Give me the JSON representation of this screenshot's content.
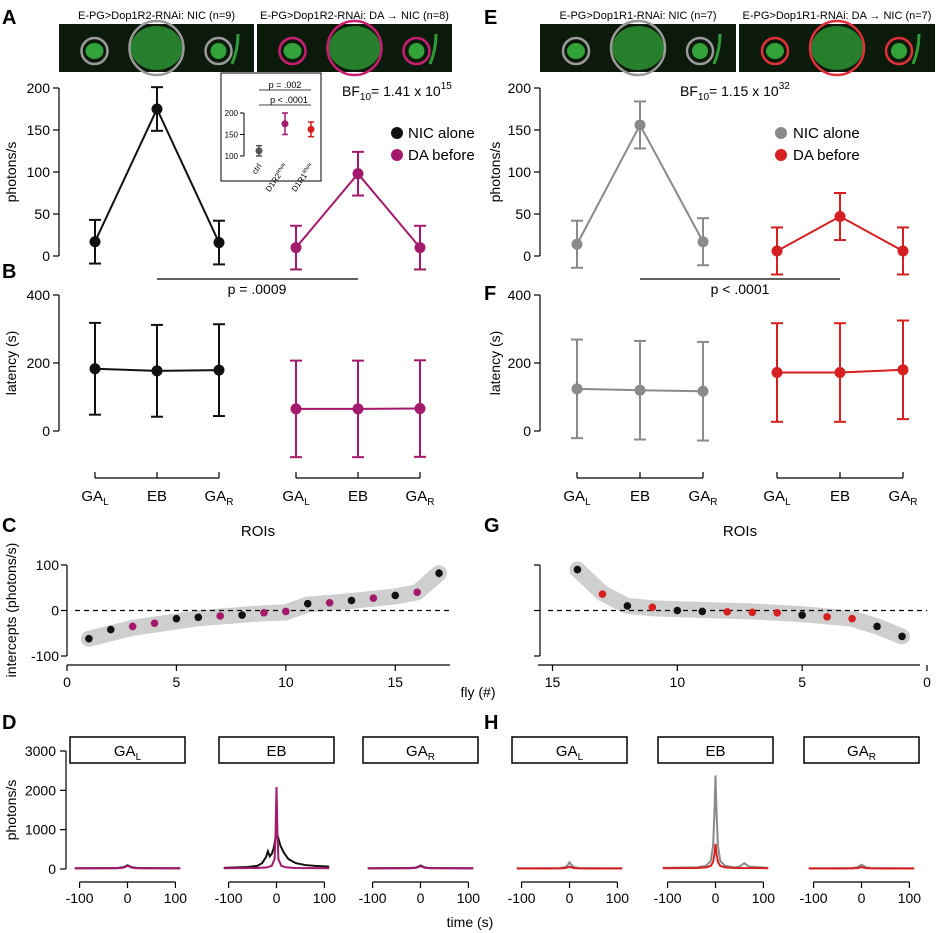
{
  "figure": {
    "colors": {
      "black": "#111111",
      "magenta": "#a3196b",
      "gray": "#8a8a8a",
      "red": "#d62020",
      "band": "#cfcfcf",
      "microscopy_bg": "#0b1a0b",
      "fluor": "#3fd24a"
    },
    "left": {
      "panel_letters": [
        "A",
        "B",
        "C",
        "D"
      ],
      "image_titles": [
        "E-PG>Dop1R2-RNAi: NIC (n=9)",
        "E-PG>Dop1R2-RNAi: DA → NIC (n=8)"
      ],
      "ring_colors": [
        "#9a9a9a",
        "#c81f73"
      ],
      "bf_text": "BF",
      "bf_sub": "10",
      "bf_value": "= 1.41 x 10",
      "bf_exp": "15",
      "p_between": "p = .0009"
    },
    "right": {
      "panel_letters": [
        "E",
        "F",
        "G",
        "H"
      ],
      "image_titles": [
        "E-PG>Dop1R1-RNAi: NIC (n=7)",
        "E-PG>Dop1R1-RNAi: DA → NIC (n=7)"
      ],
      "ring_colors": [
        "#9a9a9a",
        "#e0303a"
      ],
      "bf_text": "BF",
      "bf_sub": "10",
      "bf_value": "= 1.15 x 10",
      "bf_exp": "32",
      "p_between": "p < .0001"
    },
    "roi_axis_title": "ROIs",
    "fly_axis_title": "fly (#)",
    "time_axis_title": "time (s)",
    "trace_box_labels": [
      {
        "main": "GA",
        "sub": "L"
      },
      {
        "main": "EB",
        "sub": ""
      },
      {
        "main": "GA",
        "sub": "R"
      }
    ]
  },
  "chart_data": [
    {
      "panel": "A",
      "type": "line",
      "ylabel": "photons/s",
      "ylim": [
        0,
        200
      ],
      "yticks": [
        0,
        50,
        100,
        150,
        200
      ],
      "categories": [
        "GA_L",
        "EB",
        "GA_R"
      ],
      "series": [
        {
          "name": "NIC alone",
          "color": "#111111",
          "group": 0,
          "values": [
            17,
            175,
            16
          ],
          "err": [
            26,
            26,
            26
          ]
        },
        {
          "name": "DA before",
          "color": "#a3196b",
          "group": 1,
          "values": [
            10,
            98,
            10
          ],
          "err": [
            26,
            26,
            26
          ]
        }
      ]
    },
    {
      "panel": "A-inset",
      "type": "scatter",
      "categories": [
        "ctrl",
        "D1R2RNAi",
        "D1R1RNAi"
      ],
      "cat_labels": [
        {
          "main": "ctrl",
          "sup": ""
        },
        {
          "main": "D1R2",
          "sup": "RNAi"
        },
        {
          "main": "D1R1",
          "sup": "RNAi"
        }
      ],
      "ylim": [
        100,
        200
      ],
      "yticks": [
        100,
        150,
        200
      ],
      "values": [
        112,
        175,
        162
      ],
      "err": [
        12,
        25,
        17
      ],
      "colors": [
        "#555555",
        "#a3196b",
        "#d62020"
      ],
      "annotations": [
        "p = .002",
        "p < .0001"
      ]
    },
    {
      "panel": "B",
      "type": "line",
      "ylabel": "latency (s)",
      "ylim": [
        0,
        400
      ],
      "yticks": [
        0,
        200,
        400
      ],
      "categories": [
        "GA_L",
        "EB",
        "GA_R"
      ],
      "cat_labels": [
        {
          "main": "GA",
          "sub": "L"
        },
        {
          "main": "EB",
          "sub": ""
        },
        {
          "main": "GA",
          "sub": "R"
        }
      ],
      "series": [
        {
          "name": "NIC alone",
          "color": "#111111",
          "group": 0,
          "values": [
            183,
            177,
            179
          ],
          "err": [
            135,
            135,
            135
          ]
        },
        {
          "name": "DA before",
          "color": "#a3196b",
          "group": 1,
          "values": [
            65,
            65,
            66
          ],
          "err": [
            142,
            142,
            142
          ]
        }
      ]
    },
    {
      "panel": "C",
      "type": "scatter",
      "xlabel": "fly (#)",
      "ylabel": "intercepts (photons/s)",
      "xlim": [
        0,
        17.5
      ],
      "ylim": [
        -100,
        100
      ],
      "xticks": [
        0,
        5,
        10,
        15
      ],
      "yticks": [
        -100,
        0,
        100
      ],
      "x": [
        1,
        2,
        3,
        4,
        5,
        6,
        7,
        8,
        9,
        10,
        11,
        12,
        13,
        14,
        15,
        16,
        17
      ],
      "y": [
        -62,
        -42,
        -35,
        -28,
        -18,
        -15,
        -12,
        -10,
        -5,
        -2,
        15,
        17,
        22,
        27,
        33,
        40,
        82
      ],
      "err": [
        8,
        7,
        8,
        7,
        7,
        7,
        7,
        7,
        7,
        7,
        8,
        6,
        8,
        7,
        7,
        7,
        9
      ],
      "group": [
        0,
        0,
        1,
        1,
        0,
        0,
        1,
        0,
        1,
        1,
        0,
        1,
        0,
        1,
        0,
        1,
        0
      ],
      "series": [
        {
          "name": "NIC alone",
          "color": "#111111"
        },
        {
          "name": "DA before",
          "color": "#a3196b"
        }
      ],
      "band": [
        [
          1,
          -62
        ],
        [
          3,
          -38
        ],
        [
          6,
          -17
        ],
        [
          9,
          -6
        ],
        [
          10,
          -4
        ],
        [
          11,
          13
        ],
        [
          13,
          21
        ],
        [
          15,
          31
        ],
        [
          16,
          40
        ],
        [
          17,
          82
        ]
      ]
    },
    {
      "panel": "D",
      "type": "line",
      "xlabel": "time (s)",
      "ylabel": "photons/s",
      "xlim": [
        -120,
        120
      ],
      "ylim": [
        0,
        3000
      ],
      "xticks": [
        -100,
        0,
        100
      ],
      "yticks": [
        0,
        1000,
        2000,
        3000
      ],
      "subplots": [
        {
          "label": "GA_L",
          "series": [
            {
              "name": "NIC alone",
              "color": "#111111",
              "x": [
                -110,
                -40,
                -20,
                -10,
                -5,
                0,
                5,
                10,
                20,
                40,
                110
              ],
              "y": [
                20,
                22,
                25,
                40,
                60,
                95,
                65,
                40,
                25,
                22,
                20
              ]
            },
            {
              "name": "DA before",
              "color": "#a3196b",
              "x": [
                -110,
                -40,
                -20,
                -10,
                -5,
                0,
                5,
                10,
                20,
                40,
                110
              ],
              "y": [
                15,
                18,
                20,
                30,
                50,
                80,
                55,
                30,
                20,
                18,
                15
              ]
            }
          ]
        },
        {
          "label": "EB",
          "series": [
            {
              "name": "NIC alone",
              "color": "#111111",
              "x": [
                -110,
                -60,
                -40,
                -30,
                -22,
                -18,
                -14,
                -10,
                -6,
                -2,
                0,
                3,
                8,
                15,
                25,
                40,
                60,
                80,
                110
              ],
              "y": [
                30,
                50,
                80,
                150,
                300,
                450,
                320,
                380,
                520,
                780,
                940,
                820,
                600,
                420,
                250,
                150,
                100,
                80,
                60
              ]
            },
            {
              "name": "DA before",
              "color": "#a3196b",
              "x": [
                -110,
                -40,
                -20,
                -10,
                -4,
                -2,
                0,
                2,
                4,
                10,
                20,
                40,
                110
              ],
              "y": [
                20,
                25,
                40,
                80,
                250,
                900,
                2080,
                900,
                250,
                80,
                40,
                25,
                20
              ]
            }
          ]
        },
        {
          "label": "GA_R",
          "series": [
            {
              "name": "NIC alone",
              "color": "#111111",
              "x": [
                -110,
                -40,
                -20,
                -10,
                -5,
                0,
                5,
                10,
                20,
                40,
                110
              ],
              "y": [
                20,
                22,
                25,
                35,
                55,
                90,
                60,
                35,
                25,
                22,
                20
              ]
            },
            {
              "name": "DA before",
              "color": "#a3196b",
              "x": [
                -110,
                -40,
                -20,
                -10,
                -5,
                0,
                5,
                10,
                20,
                40,
                110
              ],
              "y": [
                15,
                18,
                20,
                28,
                45,
                75,
                50,
                28,
                20,
                18,
                15
              ]
            }
          ]
        }
      ]
    },
    {
      "panel": "E",
      "type": "line",
      "ylabel": "photons/s",
      "ylim": [
        0,
        200
      ],
      "yticks": [
        0,
        50,
        100,
        150,
        200
      ],
      "categories": [
        "GA_L",
        "EB",
        "GA_R"
      ],
      "series": [
        {
          "name": "NIC alone",
          "color": "#8a8a8a",
          "group": 0,
          "values": [
            14,
            156,
            17
          ],
          "err": [
            28,
            28,
            28
          ]
        },
        {
          "name": "DA before",
          "color": "#d62020",
          "group": 1,
          "values": [
            6,
            47,
            6
          ],
          "err": [
            28,
            28,
            28
          ]
        }
      ]
    },
    {
      "panel": "F",
      "type": "line",
      "ylabel": "latency (s)",
      "ylim": [
        0,
        400
      ],
      "yticks": [
        0,
        200,
        400
      ],
      "categories": [
        "GA_L",
        "EB",
        "GA_R"
      ],
      "cat_labels": [
        {
          "main": "GA",
          "sub": "L"
        },
        {
          "main": "EB",
          "sub": ""
        },
        {
          "main": "GA",
          "sub": "R"
        }
      ],
      "series": [
        {
          "name": "NIC alone",
          "color": "#8a8a8a",
          "group": 0,
          "values": [
            124,
            120,
            117
          ],
          "err": [
            145,
            145,
            145
          ]
        },
        {
          "name": "DA before",
          "color": "#d62020",
          "group": 1,
          "values": [
            172,
            172,
            180
          ],
          "err": [
            145,
            145,
            145
          ]
        }
      ]
    },
    {
      "panel": "G",
      "type": "scatter",
      "xlabel": "fly (#)",
      "ylabel": "intercepts (photons/s)",
      "reversed_x": true,
      "xlim": [
        15.5,
        0
      ],
      "ylim": [
        -100,
        100
      ],
      "xticks": [
        15,
        10,
        5,
        0
      ],
      "yticks": [
        -100,
        0,
        100
      ],
      "x": [
        14,
        13,
        12,
        11,
        10,
        9,
        8,
        7,
        6,
        5,
        4,
        3,
        2,
        1
      ],
      "y": [
        90,
        36,
        10,
        7,
        0,
        -2,
        -3,
        -4,
        -5,
        -10,
        -14,
        -18,
        -35,
        -57
      ],
      "err": [
        8,
        7,
        7,
        7,
        7,
        7,
        6,
        6,
        6,
        7,
        7,
        7,
        7,
        8
      ],
      "group": [
        0,
        1,
        0,
        1,
        0,
        0,
        1,
        1,
        1,
        0,
        1,
        1,
        0,
        0
      ],
      "series": [
        {
          "name": "NIC alone",
          "color": "#111111"
        },
        {
          "name": "DA before",
          "color": "#d62020"
        }
      ],
      "band": [
        [
          14,
          90
        ],
        [
          13,
          38
        ],
        [
          12,
          10
        ],
        [
          11,
          5
        ],
        [
          9,
          1
        ],
        [
          7,
          -2
        ],
        [
          5,
          -8
        ],
        [
          3,
          -18
        ],
        [
          2,
          -35
        ],
        [
          1,
          -57
        ]
      ]
    },
    {
      "panel": "H",
      "type": "line",
      "xlabel": "time (s)",
      "ylabel": "photons/s",
      "xlim": [
        -120,
        120
      ],
      "ylim": [
        0,
        3000
      ],
      "xticks": [
        -100,
        0,
        100
      ],
      "yticks": [
        0,
        1000,
        2000,
        3000
      ],
      "subplots": [
        {
          "label": "GA_L",
          "series": [
            {
              "name": "NIC alone",
              "color": "#8a8a8a",
              "x": [
                -110,
                -40,
                -20,
                -10,
                -5,
                0,
                5,
                10,
                20,
                40,
                110
              ],
              "y": [
                20,
                22,
                25,
                45,
                80,
                170,
                90,
                45,
                25,
                22,
                20
              ]
            },
            {
              "name": "DA before",
              "color": "#d62020",
              "x": [
                -110,
                -40,
                -20,
                -10,
                -5,
                0,
                5,
                10,
                20,
                40,
                110
              ],
              "y": [
                12,
                14,
                16,
                22,
                35,
                55,
                38,
                22,
                16,
                14,
                12
              ]
            }
          ]
        },
        {
          "label": "EB",
          "series": [
            {
              "name": "NIC alone",
              "color": "#8a8a8a",
              "x": [
                -110,
                -40,
                -20,
                -10,
                -5,
                -2,
                0,
                2,
                5,
                10,
                20,
                40,
                50,
                60,
                70,
                110
              ],
              "y": [
                30,
                40,
                80,
                200,
                600,
                1500,
                2380,
                1500,
                600,
                200,
                80,
                40,
                60,
                150,
                60,
                30
              ]
            },
            {
              "name": "DA before",
              "color": "#d62020",
              "x": [
                -110,
                -40,
                -20,
                -10,
                -5,
                -2,
                0,
                2,
                5,
                10,
                20,
                40,
                110
              ],
              "y": [
                20,
                25,
                40,
                80,
                180,
                400,
                640,
                400,
                180,
                80,
                40,
                25,
                20
              ]
            }
          ]
        },
        {
          "label": "GA_R",
          "series": [
            {
              "name": "NIC alone",
              "color": "#8a8a8a",
              "x": [
                -110,
                -40,
                -20,
                -10,
                -5,
                0,
                5,
                10,
                20,
                40,
                110
              ],
              "y": [
                20,
                22,
                25,
                40,
                70,
                110,
                75,
                40,
                25,
                22,
                20
              ]
            },
            {
              "name": "DA before",
              "color": "#d62020",
              "x": [
                -110,
                -40,
                -20,
                -10,
                -5,
                0,
                5,
                10,
                20,
                40,
                110
              ],
              "y": [
                12,
                14,
                16,
                22,
                32,
                50,
                34,
                22,
                16,
                14,
                12
              ]
            }
          ]
        }
      ]
    }
  ]
}
